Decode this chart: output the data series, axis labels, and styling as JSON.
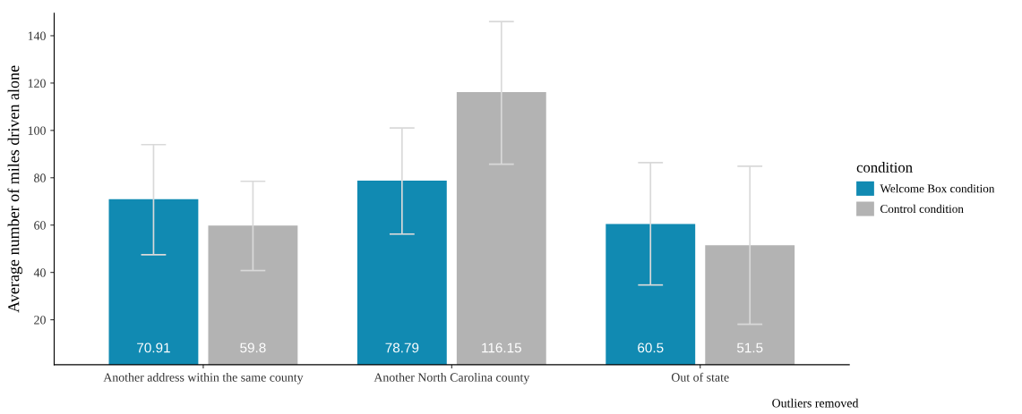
{
  "chart_data": {
    "type": "bar",
    "ylabel": "Average number of miles driven alone",
    "legend_title": "condition",
    "categories": [
      "Another address within the same county",
      "Another North Carolina county",
      "Out of state"
    ],
    "series": [
      {
        "name": "Welcome Box condition",
        "color": "#118ab2",
        "values": [
          70.91,
          78.79,
          60.5
        ],
        "errors": [
          [
            47.5,
            94
          ],
          [
            56.2,
            101
          ],
          [
            34.7,
            86.4
          ]
        ]
      },
      {
        "name": "Control condition",
        "color": "#b3b3b3",
        "values": [
          59.8,
          116.15,
          51.5
        ],
        "errors": [
          [
            40.8,
            78.5
          ],
          [
            85.7,
            146
          ],
          [
            18.1,
            84.9
          ]
        ]
      }
    ],
    "ylim": [
      1,
      149.5
    ],
    "yticks": [
      20,
      40,
      60,
      80,
      100,
      120,
      140
    ],
    "data_labels": true,
    "grid": false,
    "legend": "right",
    "annotations": [
      "Outliers removed"
    ]
  }
}
